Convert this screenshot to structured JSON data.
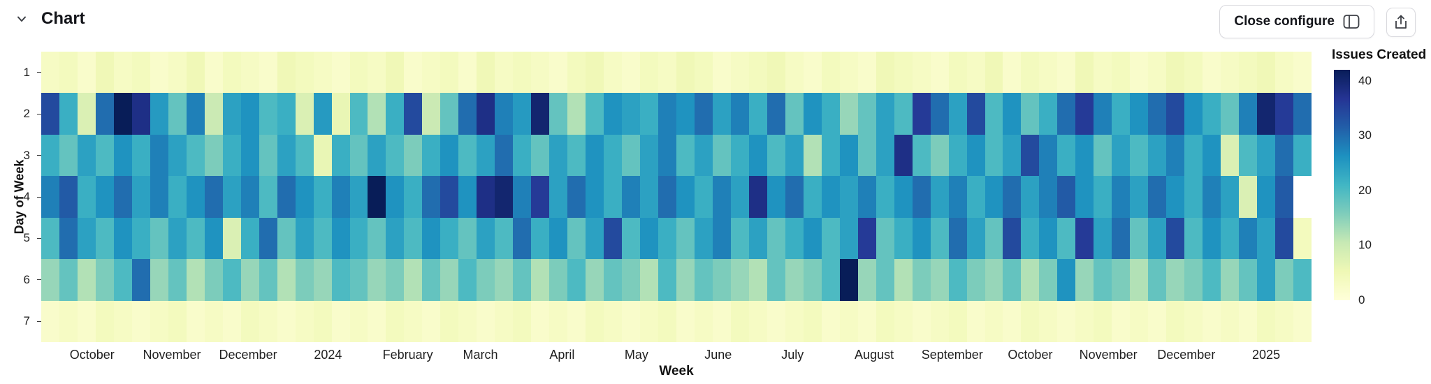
{
  "header": {
    "title": "Chart",
    "close_configure_label": "Close configure"
  },
  "chart_data": {
    "type": "heatmap",
    "xlabel": "Week",
    "ylabel": "Day of Week",
    "legend_title": "Issues Created",
    "vmin": 0,
    "vmax": 42,
    "colorbar_ticks": [
      40,
      30,
      20,
      10,
      0
    ],
    "colormap_stops": [
      [
        0,
        "#ffffd9"
      ],
      [
        0.125,
        "#eff8b5"
      ],
      [
        0.25,
        "#c7e9b4"
      ],
      [
        0.375,
        "#7fcdbb"
      ],
      [
        0.5,
        "#41b6c4"
      ],
      [
        0.625,
        "#1d91c0"
      ],
      [
        0.75,
        "#225ea8"
      ],
      [
        0.875,
        "#253494"
      ],
      [
        1,
        "#081d58"
      ]
    ],
    "y_labels": [
      "1",
      "2",
      "3",
      "4",
      "5",
      "6",
      "7"
    ],
    "weeks": 70,
    "x_ticks": [
      {
        "label": "October",
        "week": 2.8
      },
      {
        "label": "November",
        "week": 7.2
      },
      {
        "label": "December",
        "week": 11.4
      },
      {
        "label": "2024",
        "week": 15.8
      },
      {
        "label": "February",
        "week": 20.2
      },
      {
        "label": "March",
        "week": 24.2
      },
      {
        "label": "April",
        "week": 28.7
      },
      {
        "label": "May",
        "week": 32.8
      },
      {
        "label": "June",
        "week": 37.3
      },
      {
        "label": "July",
        "week": 41.4
      },
      {
        "label": "August",
        "week": 45.9
      },
      {
        "label": "September",
        "week": 50.2
      },
      {
        "label": "October",
        "week": 54.5
      },
      {
        "label": "November",
        "week": 58.8
      },
      {
        "label": "December",
        "week": 63.1
      },
      {
        "label": "2025",
        "week": 67.5
      }
    ],
    "rows": [
      [
        3,
        4,
        2,
        5,
        3,
        4,
        2,
        3,
        5,
        2,
        4,
        3,
        2,
        5,
        4,
        3,
        2,
        4,
        3,
        5,
        2,
        3,
        4,
        2,
        5,
        3,
        4,
        3,
        2,
        4,
        5,
        3,
        2,
        4,
        3,
        5,
        4,
        2,
        3,
        4,
        5,
        3,
        2,
        4,
        3,
        2,
        5,
        4,
        3,
        2,
        4,
        3,
        5,
        2,
        4,
        3,
        2,
        5,
        3,
        4,
        2,
        3,
        5,
        4,
        2,
        3,
        4,
        5,
        3,
        2
      ],
      [
        34,
        22,
        8,
        30,
        42,
        38,
        25,
        18,
        28,
        10,
        24,
        26,
        20,
        22,
        8,
        25,
        6,
        20,
        12,
        22,
        34,
        10,
        18,
        30,
        38,
        28,
        25,
        40,
        18,
        12,
        20,
        26,
        24,
        22,
        28,
        26,
        30,
        24,
        28,
        22,
        30,
        18,
        26,
        22,
        14,
        18,
        24,
        20,
        36,
        30,
        24,
        34,
        20,
        26,
        18,
        22,
        30,
        36,
        28,
        22,
        26,
        30,
        34,
        26,
        22,
        18,
        28,
        40,
        36,
        30
      ],
      [
        22,
        18,
        24,
        20,
        26,
        22,
        28,
        24,
        20,
        16,
        22,
        26,
        18,
        24,
        20,
        6,
        22,
        18,
        24,
        20,
        16,
        22,
        26,
        20,
        24,
        30,
        22,
        18,
        24,
        20,
        26,
        22,
        18,
        24,
        28,
        20,
        24,
        18,
        22,
        26,
        20,
        24,
        12,
        22,
        26,
        18,
        24,
        38,
        20,
        16,
        22,
        26,
        20,
        24,
        34,
        28,
        22,
        26,
        18,
        24,
        20,
        24,
        28,
        22,
        26,
        8,
        20,
        24,
        30,
        22
      ],
      [
        28,
        32,
        22,
        26,
        30,
        24,
        28,
        22,
        26,
        30,
        24,
        28,
        20,
        30,
        26,
        22,
        28,
        24,
        42,
        26,
        22,
        30,
        34,
        26,
        38,
        40,
        28,
        36,
        24,
        30,
        26,
        22,
        28,
        24,
        30,
        26,
        22,
        28,
        24,
        38,
        26,
        30,
        22,
        26,
        24,
        28,
        22,
        26,
        30,
        24,
        28,
        22,
        26,
        30,
        24,
        28,
        32,
        26,
        22,
        28,
        24,
        30,
        26,
        22,
        28,
        24,
        8,
        26,
        32,
        null
      ],
      [
        20,
        30,
        24,
        20,
        26,
        22,
        18,
        24,
        20,
        26,
        8,
        22,
        30,
        18,
        24,
        20,
        26,
        22,
        18,
        24,
        20,
        26,
        22,
        18,
        24,
        20,
        30,
        22,
        26,
        18,
        24,
        34,
        20,
        26,
        22,
        18,
        24,
        28,
        20,
        24,
        18,
        22,
        26,
        20,
        24,
        36,
        18,
        22,
        26,
        20,
        30,
        24,
        18,
        34,
        22,
        26,
        20,
        36,
        24,
        30,
        18,
        24,
        34,
        20,
        26,
        22,
        28,
        24,
        34,
        4
      ],
      [
        14,
        18,
        12,
        16,
        20,
        30,
        14,
        18,
        12,
        16,
        20,
        14,
        18,
        12,
        16,
        14,
        20,
        18,
        14,
        16,
        12,
        18,
        14,
        20,
        16,
        14,
        18,
        12,
        16,
        20,
        14,
        18,
        16,
        12,
        20,
        14,
        18,
        16,
        14,
        12,
        18,
        14,
        16,
        20,
        42,
        14,
        18,
        12,
        16,
        14,
        20,
        16,
        14,
        18,
        12,
        16,
        26,
        14,
        18,
        16,
        12,
        18,
        14,
        16,
        20,
        14,
        18,
        24,
        16,
        20
      ],
      [
        2,
        3,
        2,
        4,
        3,
        2,
        3,
        4,
        2,
        3,
        2,
        4,
        3,
        2,
        3,
        4,
        2,
        3,
        2,
        4,
        3,
        2,
        4,
        3,
        2,
        3,
        4,
        2,
        3,
        2,
        4,
        3,
        2,
        3,
        4,
        2,
        3,
        2,
        4,
        3,
        2,
        3,
        4,
        2,
        3,
        2,
        4,
        3,
        2,
        3,
        4,
        2,
        3,
        2,
        4,
        3,
        2,
        3,
        4,
        2,
        3,
        2,
        4,
        3,
        2,
        3,
        2,
        4,
        3,
        2
      ]
    ]
  }
}
